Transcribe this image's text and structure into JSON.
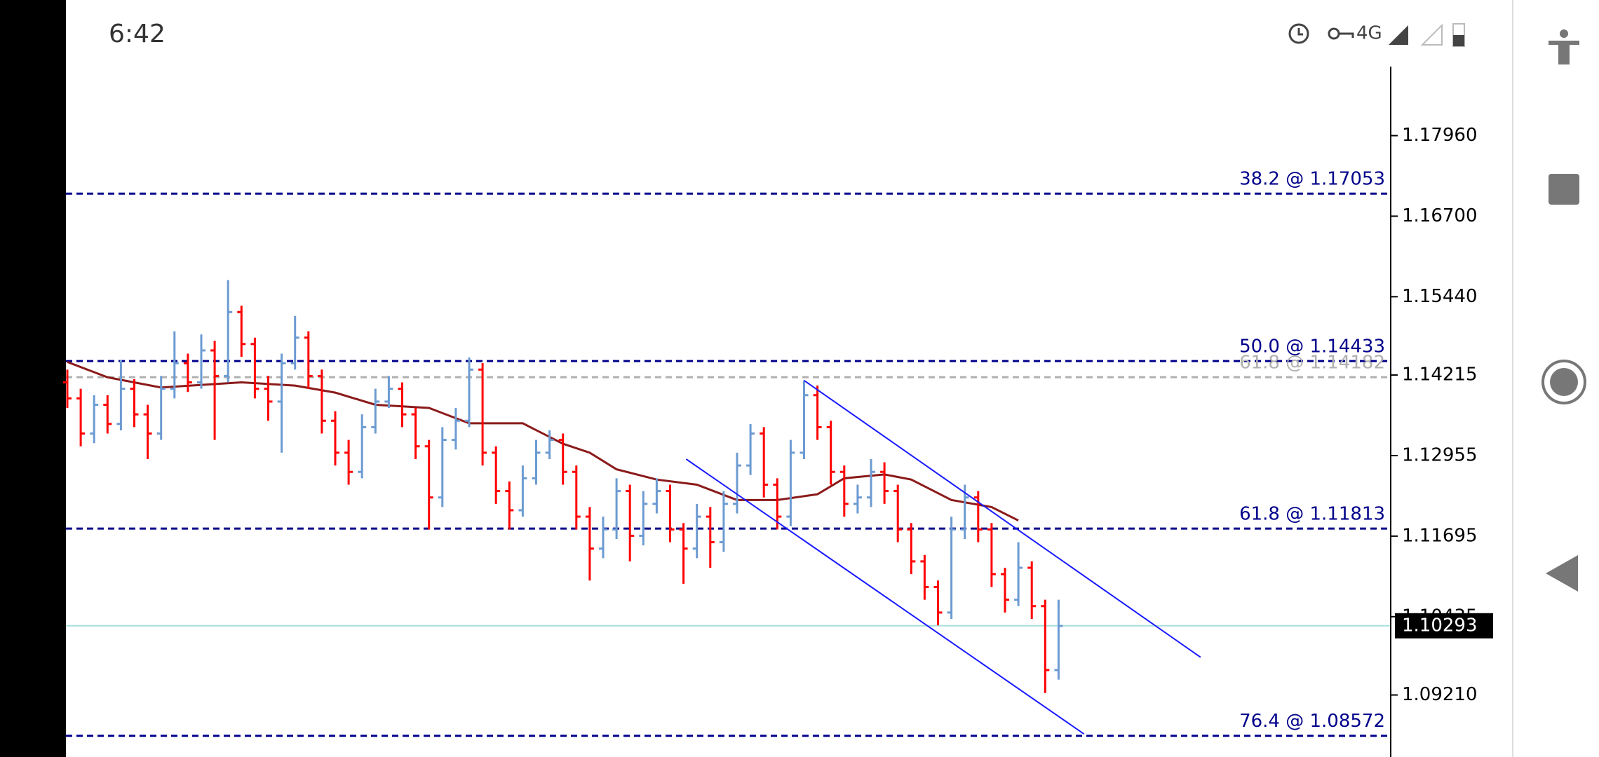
{
  "status_bar": {
    "time": "6:42",
    "network": "4G"
  },
  "chart_data": {
    "type": "ohlc",
    "up_color": "#6c9bd2",
    "down_color": "#ff0000",
    "ylim": [
      1.0824,
      1.1904
    ],
    "yticks": [
      {
        "value": 1.1796,
        "label": "1.17960"
      },
      {
        "value": 1.167,
        "label": "1.16700"
      },
      {
        "value": 1.1544,
        "label": "1.15440"
      },
      {
        "value": 1.14215,
        "label": "1.14215"
      },
      {
        "value": 1.12955,
        "label": "1.12955"
      },
      {
        "value": 1.11695,
        "label": "1.11695"
      },
      {
        "value": 1.10435,
        "label": "1.10435"
      },
      {
        "value": 1.0921,
        "label": "1.09210"
      }
    ],
    "bars": [
      [
        1.141,
        1.143,
        1.137,
        1.1385
      ],
      [
        1.1385,
        1.14,
        1.131,
        1.133
      ],
      [
        1.133,
        1.139,
        1.1315,
        1.1375
      ],
      [
        1.1375,
        1.139,
        1.133,
        1.1345
      ],
      [
        1.1345,
        1.1445,
        1.1335,
        1.14
      ],
      [
        1.14,
        1.1415,
        1.134,
        1.136
      ],
      [
        1.136,
        1.1375,
        1.129,
        1.133
      ],
      [
        1.133,
        1.142,
        1.132,
        1.14
      ],
      [
        1.14,
        1.149,
        1.1385,
        1.144
      ],
      [
        1.144,
        1.1455,
        1.1395,
        1.141
      ],
      [
        1.141,
        1.1485,
        1.14,
        1.146
      ],
      [
        1.146,
        1.1475,
        1.132,
        1.142
      ],
      [
        1.142,
        1.157,
        1.141,
        1.152
      ],
      [
        1.152,
        1.153,
        1.145,
        1.147
      ],
      [
        1.147,
        1.148,
        1.1385,
        1.14
      ],
      [
        1.14,
        1.142,
        1.135,
        1.138
      ],
      [
        1.138,
        1.1455,
        1.13,
        1.144
      ],
      [
        1.144,
        1.1514,
        1.143,
        1.148
      ],
      [
        1.148,
        1.149,
        1.14,
        1.142
      ],
      [
        1.142,
        1.143,
        1.133,
        1.135
      ],
      [
        1.135,
        1.1365,
        1.128,
        1.13
      ],
      [
        1.13,
        1.132,
        1.125,
        1.127
      ],
      [
        1.127,
        1.136,
        1.126,
        1.134
      ],
      [
        1.134,
        1.14,
        1.133,
        1.138
      ],
      [
        1.138,
        1.142,
        1.137,
        1.14
      ],
      [
        1.14,
        1.141,
        1.134,
        1.136
      ],
      [
        1.136,
        1.137,
        1.129,
        1.131
      ],
      [
        1.131,
        1.132,
        1.118,
        1.123
      ],
      [
        1.123,
        1.134,
        1.1215,
        1.132
      ],
      [
        1.132,
        1.137,
        1.1305,
        1.135
      ],
      [
        1.135,
        1.1449,
        1.134,
        1.143
      ],
      [
        1.143,
        1.144,
        1.128,
        1.13
      ],
      [
        1.13,
        1.131,
        1.122,
        1.124
      ],
      [
        1.124,
        1.1255,
        1.118,
        1.121
      ],
      [
        1.121,
        1.128,
        1.12,
        1.126
      ],
      [
        1.126,
        1.132,
        1.125,
        1.13
      ],
      [
        1.13,
        1.1335,
        1.129,
        1.132
      ],
      [
        1.132,
        1.133,
        1.125,
        1.127
      ],
      [
        1.127,
        1.128,
        1.118,
        1.12
      ],
      [
        1.12,
        1.1215,
        1.11,
        1.115
      ],
      [
        1.115,
        1.12,
        1.1135,
        1.118
      ],
      [
        1.118,
        1.126,
        1.1165,
        1.124
      ],
      [
        1.124,
        1.125,
        1.113,
        1.117
      ],
      [
        1.117,
        1.124,
        1.1155,
        1.122
      ],
      [
        1.122,
        1.126,
        1.1205,
        1.124
      ],
      [
        1.124,
        1.125,
        1.116,
        1.118
      ],
      [
        1.118,
        1.119,
        1.1095,
        1.115
      ],
      [
        1.115,
        1.122,
        1.1135,
        1.12
      ],
      [
        1.12,
        1.1215,
        1.112,
        1.116
      ],
      [
        1.116,
        1.124,
        1.1145,
        1.122
      ],
      [
        1.122,
        1.13,
        1.1205,
        1.128
      ],
      [
        1.128,
        1.1345,
        1.1265,
        1.133
      ],
      [
        1.133,
        1.134,
        1.123,
        1.125
      ],
      [
        1.125,
        1.126,
        1.118,
        1.12
      ],
      [
        1.12,
        1.132,
        1.1185,
        1.13
      ],
      [
        1.13,
        1.1413,
        1.129,
        1.139
      ],
      [
        1.139,
        1.1405,
        1.132,
        1.134
      ],
      [
        1.134,
        1.135,
        1.125,
        1.127
      ],
      [
        1.127,
        1.128,
        1.12,
        1.122
      ],
      [
        1.122,
        1.125,
        1.1205,
        1.123
      ],
      [
        1.123,
        1.129,
        1.1215,
        1.127
      ],
      [
        1.127,
        1.1285,
        1.122,
        1.124
      ],
      [
        1.124,
        1.125,
        1.116,
        1.118
      ],
      [
        1.118,
        1.119,
        1.111,
        1.113
      ],
      [
        1.113,
        1.114,
        1.107,
        1.109
      ],
      [
        1.109,
        1.11,
        1.103,
        1.105
      ],
      [
        1.105,
        1.12,
        1.104,
        1.118
      ],
      [
        1.118,
        1.125,
        1.1165,
        1.123
      ],
      [
        1.123,
        1.124,
        1.116,
        1.118
      ],
      [
        1.118,
        1.119,
        1.109,
        1.111
      ],
      [
        1.111,
        1.112,
        1.105,
        1.107
      ],
      [
        1.107,
        1.116,
        1.106,
        1.112
      ],
      [
        1.112,
        1.113,
        1.104,
        1.106
      ],
      [
        1.106,
        1.107,
        1.0924,
        1.096
      ],
      [
        1.096,
        1.107,
        1.0945,
        1.1029
      ]
    ],
    "moving_average": {
      "color": "#8b1a1a",
      "x": [
        0,
        3,
        7,
        13,
        17,
        20,
        23,
        27,
        30,
        34,
        37,
        39,
        41,
        44,
        47,
        50,
        53,
        56,
        58,
        61,
        63,
        66,
        69,
        71
      ],
      "values": [
        1.1442,
        1.1418,
        1.1402,
        1.141,
        1.1405,
        1.1394,
        1.1375,
        1.137,
        1.1346,
        1.1346,
        1.1314,
        1.13,
        1.1274,
        1.1258,
        1.125,
        1.1226,
        1.1226,
        1.1235,
        1.126,
        1.1266,
        1.1258,
        1.1226,
        1.1215,
        1.1194
      ]
    },
    "trendlines": [
      {
        "color": "#1a1aff",
        "x": [
          55,
          84.6
        ],
        "values": [
          1.1413,
          1.098
        ]
      },
      {
        "color": "#1a1aff",
        "x": [
          46.2,
          75.9
        ],
        "values": [
          1.129,
          1.086
        ]
      }
    ],
    "fib_levels": [
      {
        "label": "38.2 @ 1.17053",
        "value": 1.17053,
        "color": "#00008b"
      },
      {
        "label": "50.0 @ 1.14433",
        "value": 1.14433,
        "color": "#00008b"
      },
      {
        "label": "61.8 @ 1.14182",
        "value": 1.14182,
        "color": "#b0b0b0"
      },
      {
        "label": "61.8 @ 1.11813",
        "value": 1.11813,
        "color": "#00008b"
      },
      {
        "label": "76.4 @ 1.08572",
        "value": 1.08572,
        "color": "#00008b"
      }
    ],
    "current_price": {
      "value": 1.10293,
      "label": "1.10293",
      "color": "#a8dede"
    }
  }
}
